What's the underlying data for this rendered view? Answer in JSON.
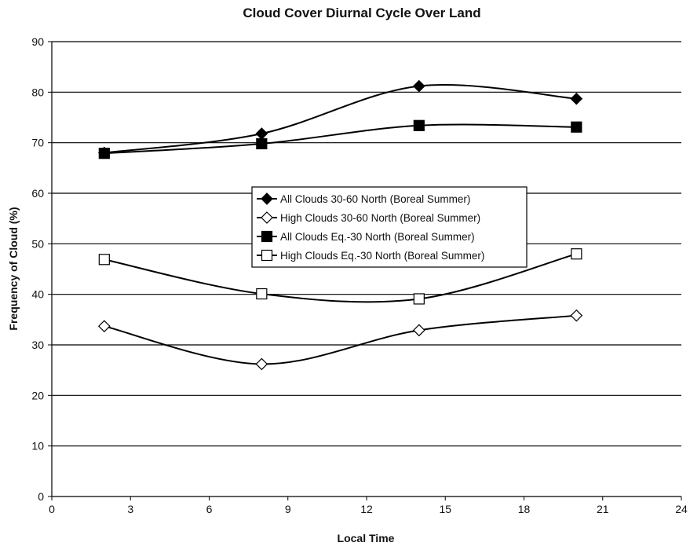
{
  "chart_data": {
    "type": "line",
    "title": "Cloud Cover Diurnal Cycle Over Land",
    "xlabel": "Local Time",
    "ylabel": "Frequency of Cloud (%)",
    "xlim": [
      0,
      24
    ],
    "ylim": [
      0,
      90
    ],
    "xticks": [
      "0",
      "3",
      "6",
      "9",
      "12",
      "15",
      "18",
      "21",
      "24"
    ],
    "yticks": [
      "0",
      "10",
      "20",
      "30",
      "40",
      "50",
      "60",
      "70",
      "80",
      "90"
    ],
    "x": [
      2,
      8,
      14,
      20
    ],
    "grid": "horizontal",
    "legend_position": "center",
    "series": [
      {
        "name": "All Clouds 30-60 North (Boreal Summer)",
        "values": [
          68,
          71.8,
          81.2,
          78.7
        ],
        "marker": "diamond-filled"
      },
      {
        "name": "High Clouds 30-60 North (Boreal Summer)",
        "values": [
          33.7,
          26.2,
          32.9,
          35.8
        ],
        "marker": "diamond-open"
      },
      {
        "name": "All Clouds Eq.-30 North (Boreal Summer)",
        "values": [
          67.9,
          69.8,
          73.4,
          73.1
        ],
        "marker": "square-filled"
      },
      {
        "name": "High Clouds Eq.-30 North (Boreal Summer)",
        "values": [
          46.9,
          40.1,
          39.1,
          48.0
        ],
        "marker": "square-open"
      }
    ]
  }
}
